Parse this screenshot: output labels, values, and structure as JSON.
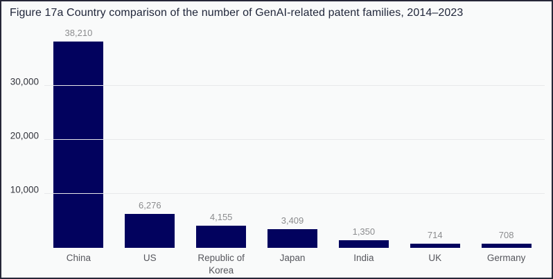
{
  "title": "Figure 17a Country comparison of the number of GenAI-related patent families, 2014–2023",
  "colors": {
    "bar": "#02025e",
    "background": "#f9fafa",
    "card_border": "#262637",
    "gridline": "#e7e8ea",
    "value_label": "#8b8c8e",
    "tick_label": "#33343c",
    "category_label": "#55565c",
    "title_color": "#20263a"
  },
  "chart_data": {
    "type": "bar",
    "title": "Figure 17a Country comparison of the number of GenAI-related patent families, 2014–2023",
    "categories": [
      "China",
      "US",
      "Republic of Korea",
      "Japan",
      "India",
      "UK",
      "Germany"
    ],
    "values": [
      38210,
      6276,
      4155,
      3409,
      1350,
      714,
      708
    ],
    "value_labels": [
      "38,210",
      "6,276",
      "4,155",
      "3,409",
      "1,350",
      "714",
      "708"
    ],
    "xlabel": "",
    "ylabel": "",
    "ylim": [
      0,
      41150
    ],
    "yticks": [
      {
        "value": 10000,
        "label": "10,000"
      },
      {
        "value": 20000,
        "label": "20,000"
      },
      {
        "value": 30000,
        "label": "30,000"
      }
    ],
    "grid": true,
    "legend": false,
    "bar_color": "#02025e"
  }
}
